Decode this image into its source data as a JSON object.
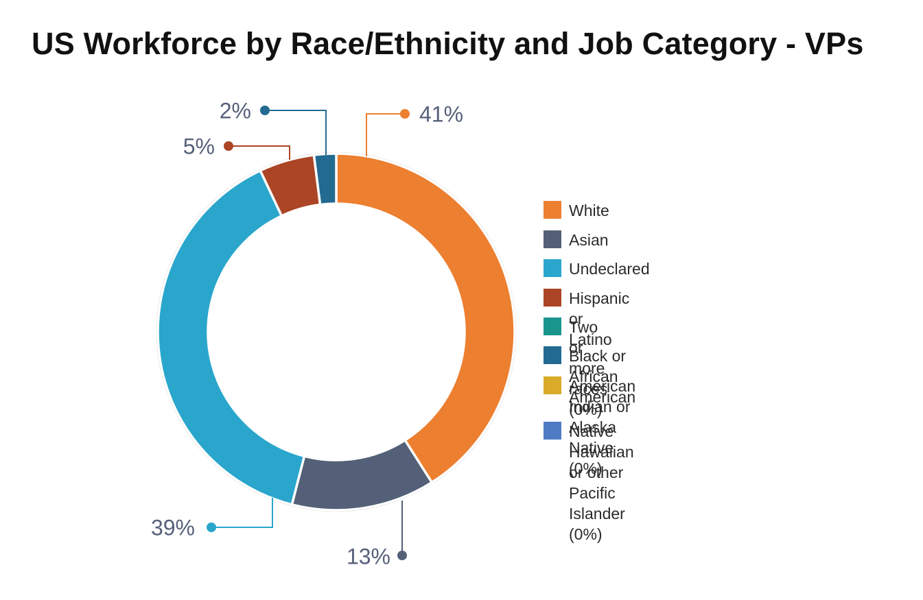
{
  "chart_data": {
    "type": "pie",
    "variant": "donut",
    "title": "US Workforce by Race/Ethnicity and Job Category - VPs",
    "slices": [
      {
        "name": "White",
        "value": 41,
        "label": "41%",
        "color": "#ec7f30"
      },
      {
        "name": "Asian",
        "value": 13,
        "label": "13%",
        "color": "#536078"
      },
      {
        "name": "Undeclared",
        "value": 39,
        "label": "39%",
        "color": "#2aa6cc"
      },
      {
        "name": "Hispanic or Latino",
        "value": 5,
        "label": "5%",
        "color": "#ab4526"
      },
      {
        "name": "Two or more races (0%)",
        "value": 0,
        "label": "",
        "color": "#1a958d"
      },
      {
        "name": "Black or African American",
        "value": 2,
        "label": "2%",
        "color": "#236a91"
      },
      {
        "name": "American Indian or\nAlaska Native  (0%)",
        "value": 0,
        "label": "",
        "color": "#d9ab28"
      },
      {
        "name": "Native Hawaiian or other\nPacific Islander  (0%)",
        "value": 0,
        "label": "",
        "color": "#4f7bc4"
      }
    ],
    "legend_position": "right"
  }
}
